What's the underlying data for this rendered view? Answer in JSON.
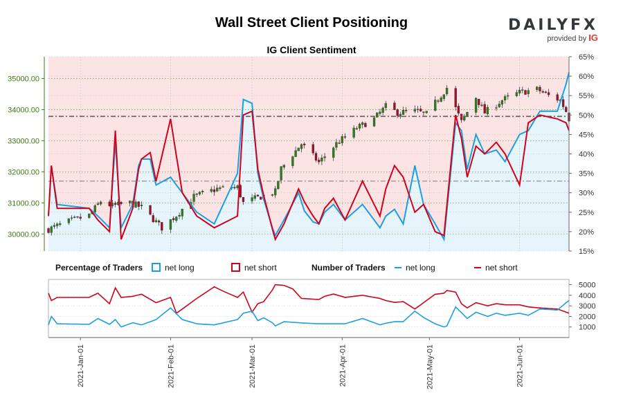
{
  "header": {
    "title": "Wall Street Client Positioning",
    "subtitle": "IG Client Sentiment",
    "logo_text": "DAILYFX",
    "logo_sub": "provided by",
    "logo_brand": "IG"
  },
  "legend": {
    "percentage_heading": "Percentage of Traders",
    "number_heading": "Number of Traders",
    "net_long": "net long",
    "net_short": "net short"
  },
  "colors": {
    "long": "#1a9fe0",
    "short": "#d0021b",
    "bull_candle": "#2e7d1e",
    "bear_candle": "#a0102a",
    "long_area": "#e6f4fc",
    "short_area": "#fce4e5",
    "left_axis": "#3d7a12"
  },
  "chart_data": [
    {
      "type": "candlestick",
      "name": "price",
      "x_range": [
        "2020-12-21",
        "2021-06-18"
      ],
      "y_axis": "left",
      "ylim": [
        29450,
        35700
      ],
      "y_ticks": [
        30000,
        31000,
        32000,
        33000,
        34000,
        35000
      ],
      "y_tick_labels": [
        "30000.00",
        "31000.00",
        "32000.00",
        "33000.00",
        "34000.00",
        "35000.00"
      ],
      "current_price_line": 33780,
      "x_tick_labels": [
        "2021-Jan-01",
        "2021-Feb-01",
        "2021-Mar-01",
        "2021-Apr-01",
        "2021-May-01",
        "2021-Jun-01"
      ],
      "x_ticks": [
        "2021-01-01",
        "2021-02-01",
        "2021-03-01",
        "2021-04-01",
        "2021-05-01",
        "2021-06-01"
      ],
      "anchors": [
        [
          "2020-12-21",
          30150
        ],
        [
          "2020-12-28",
          30400
        ],
        [
          "2021-01-04",
          30600
        ],
        [
          "2021-01-08",
          31050
        ],
        [
          "2021-01-12",
          30900
        ],
        [
          "2021-01-18",
          31000
        ],
        [
          "2021-01-22",
          30850
        ],
        [
          "2021-01-29",
          30200
        ],
        [
          "2021-02-03",
          30600
        ],
        [
          "2021-02-09",
          31200
        ],
        [
          "2021-02-17",
          31450
        ],
        [
          "2021-02-24",
          31500
        ],
        [
          "2021-02-26",
          31000
        ],
        [
          "2021-03-04",
          31200
        ],
        [
          "2021-03-09",
          31350
        ],
        [
          "2021-03-11",
          32100
        ],
        [
          "2021-03-18",
          32900
        ],
        [
          "2021-03-24",
          32300
        ],
        [
          "2021-03-30",
          32900
        ],
        [
          "2021-04-06",
          33400
        ],
        [
          "2021-04-12",
          33700
        ],
        [
          "2021-04-16",
          34100
        ],
        [
          "2021-04-20",
          33900
        ],
        [
          "2021-04-26",
          33950
        ],
        [
          "2021-04-30",
          33850
        ],
        [
          "2021-05-07",
          34700
        ],
        [
          "2021-05-12",
          33600
        ],
        [
          "2021-05-17",
          34400
        ],
        [
          "2021-05-20",
          33900
        ],
        [
          "2021-05-26",
          34300
        ],
        [
          "2021-06-01",
          34550
        ],
        [
          "2021-06-07",
          34650
        ],
        [
          "2021-06-11",
          34450
        ],
        [
          "2021-06-15",
          34300
        ],
        [
          "2021-06-17",
          33950
        ],
        [
          "2021-06-18",
          33700
        ]
      ]
    },
    {
      "type": "line",
      "name": "net long %",
      "y_axis": "right",
      "ylim": [
        15,
        65
      ],
      "y_ticks": [
        15,
        20,
        25,
        30,
        35,
        40,
        45,
        50,
        55,
        60,
        65
      ],
      "y_tick_labels": [
        "15%",
        "20%",
        "25%",
        "30%",
        "35%",
        "40%",
        "45%",
        "50%",
        "55%",
        "60%",
        "65%"
      ],
      "reference_line": 33,
      "anchors": [
        [
          "2020-12-21",
          24
        ],
        [
          "2020-12-22",
          37
        ],
        [
          "2020-12-24",
          27
        ],
        [
          "2021-01-04",
          26
        ],
        [
          "2021-01-07",
          24
        ],
        [
          "2021-01-11",
          21
        ],
        [
          "2021-01-13",
          43
        ],
        [
          "2021-01-15",
          21
        ],
        [
          "2021-01-19",
          27
        ],
        [
          "2021-01-21",
          37
        ],
        [
          "2021-01-24",
          42
        ],
        [
          "2021-01-27",
          32
        ],
        [
          "2021-02-01",
          34
        ],
        [
          "2021-02-05",
          30
        ],
        [
          "2021-02-10",
          25
        ],
        [
          "2021-02-16",
          22
        ],
        [
          "2021-02-24",
          35
        ],
        [
          "2021-02-26",
          54
        ],
        [
          "2021-03-01",
          53
        ],
        [
          "2021-03-03",
          35
        ],
        [
          "2021-03-06",
          25
        ],
        [
          "2021-03-09",
          19
        ],
        [
          "2021-03-12",
          23
        ],
        [
          "2021-03-17",
          30
        ],
        [
          "2021-03-20",
          23
        ],
        [
          "2021-03-24",
          22
        ],
        [
          "2021-03-28",
          28
        ],
        [
          "2021-04-02",
          23
        ],
        [
          "2021-04-08",
          27
        ],
        [
          "2021-04-14",
          21
        ],
        [
          "2021-04-18",
          27
        ],
        [
          "2021-04-22",
          22
        ],
        [
          "2021-04-26",
          37
        ],
        [
          "2021-04-29",
          27
        ],
        [
          "2021-05-03",
          22
        ],
        [
          "2021-05-06",
          18
        ],
        [
          "2021-05-10",
          48
        ],
        [
          "2021-05-12",
          46
        ],
        [
          "2021-05-14",
          36
        ],
        [
          "2021-05-17",
          45
        ],
        [
          "2021-05-20",
          40
        ],
        [
          "2021-05-24",
          41
        ],
        [
          "2021-05-27",
          38
        ],
        [
          "2021-06-01",
          45
        ],
        [
          "2021-06-04",
          46
        ],
        [
          "2021-06-08",
          51
        ],
        [
          "2021-06-14",
          51
        ],
        [
          "2021-06-17",
          58
        ],
        [
          "2021-06-18",
          61
        ]
      ]
    },
    {
      "type": "line",
      "name": "net short %",
      "y_axis": "right",
      "ylim": [
        15,
        65
      ],
      "anchors": [
        [
          "2020-12-21",
          24
        ],
        [
          "2020-12-22",
          37
        ],
        [
          "2020-12-24",
          26
        ],
        [
          "2021-01-04",
          26
        ],
        [
          "2021-01-07",
          23
        ],
        [
          "2021-01-11",
          20
        ],
        [
          "2021-01-13",
          46
        ],
        [
          "2021-01-15",
          18
        ],
        [
          "2021-01-19",
          26
        ],
        [
          "2021-01-21",
          36
        ],
        [
          "2021-01-24",
          44
        ],
        [
          "2021-01-27",
          33
        ],
        [
          "2021-02-01",
          49
        ],
        [
          "2021-02-05",
          30
        ],
        [
          "2021-02-10",
          24
        ],
        [
          "2021-02-16",
          21
        ],
        [
          "2021-02-24",
          24
        ],
        [
          "2021-02-26",
          50
        ],
        [
          "2021-03-01",
          51
        ],
        [
          "2021-03-03",
          36
        ],
        [
          "2021-03-06",
          26
        ],
        [
          "2021-03-09",
          18
        ],
        [
          "2021-03-12",
          22
        ],
        [
          "2021-03-17",
          31
        ],
        [
          "2021-03-20",
          26
        ],
        [
          "2021-03-24",
          22
        ],
        [
          "2021-03-28",
          30
        ],
        [
          "2021-04-02",
          23
        ],
        [
          "2021-04-08",
          33
        ],
        [
          "2021-04-14",
          24
        ],
        [
          "2021-04-18",
          38
        ],
        [
          "2021-04-22",
          34
        ],
        [
          "2021-04-26",
          25
        ],
        [
          "2021-04-29",
          27
        ],
        [
          "2021-05-03",
          20
        ],
        [
          "2021-05-06",
          19
        ],
        [
          "2021-05-10",
          50
        ],
        [
          "2021-05-12",
          44
        ],
        [
          "2021-05-14",
          34
        ],
        [
          "2021-05-17",
          42
        ],
        [
          "2021-05-20",
          40
        ],
        [
          "2021-05-24",
          43
        ],
        [
          "2021-05-27",
          40
        ],
        [
          "2021-06-01",
          32
        ],
        [
          "2021-06-04",
          48
        ],
        [
          "2021-06-08",
          50
        ],
        [
          "2021-06-14",
          49
        ],
        [
          "2021-06-17",
          48
        ],
        [
          "2021-06-18",
          46
        ]
      ]
    },
    {
      "type": "line",
      "name": "number of traders",
      "y_axis": "right",
      "ylim": [
        0,
        5500
      ],
      "y_ticks": [
        1000,
        2000,
        3000,
        4000,
        5000
      ],
      "y_tick_labels": [
        "1000",
        "2000",
        "3000",
        "4000",
        "5000"
      ],
      "series": [
        {
          "name": "net long",
          "anchors": [
            [
              "2020-12-21",
              1200
            ],
            [
              "2020-12-22",
              2000
            ],
            [
              "2020-12-24",
              1300
            ],
            [
              "2021-01-04",
              1250
            ],
            [
              "2021-01-07",
              1800
            ],
            [
              "2021-01-11",
              1250
            ],
            [
              "2021-01-13",
              1700
            ],
            [
              "2021-01-15",
              1000
            ],
            [
              "2021-01-19",
              1400
            ],
            [
              "2021-01-22",
              1200
            ],
            [
              "2021-01-27",
              1700
            ],
            [
              "2021-02-01",
              2800
            ],
            [
              "2021-02-05",
              1700
            ],
            [
              "2021-02-10",
              1300
            ],
            [
              "2021-02-16",
              1200
            ],
            [
              "2021-02-24",
              1700
            ],
            [
              "2021-02-26",
              2300
            ],
            [
              "2021-03-01",
              2500
            ],
            [
              "2021-03-03",
              1600
            ],
            [
              "2021-03-06",
              2000
            ],
            [
              "2021-03-09",
              1100
            ],
            [
              "2021-03-12",
              1500
            ],
            [
              "2021-03-17",
              1400
            ],
            [
              "2021-03-24",
              1300
            ],
            [
              "2021-04-02",
              1300
            ],
            [
              "2021-04-08",
              1800
            ],
            [
              "2021-04-14",
              1200
            ],
            [
              "2021-04-18",
              1500
            ],
            [
              "2021-04-22",
              1500
            ],
            [
              "2021-04-26",
              2500
            ],
            [
              "2021-04-29",
              1900
            ],
            [
              "2021-05-03",
              1300
            ],
            [
              "2021-05-06",
              1000
            ],
            [
              "2021-05-09",
              1300
            ],
            [
              "2021-05-10",
              2900
            ],
            [
              "2021-05-14",
              1800
            ],
            [
              "2021-05-17",
              2400
            ],
            [
              "2021-05-21",
              2000
            ],
            [
              "2021-05-24",
              2300
            ],
            [
              "2021-05-27",
              2100
            ],
            [
              "2021-06-01",
              2300
            ],
            [
              "2021-06-04",
              2100
            ],
            [
              "2021-06-08",
              2700
            ],
            [
              "2021-06-14",
              2600
            ],
            [
              "2021-06-17",
              3300
            ],
            [
              "2021-06-18",
              3500
            ]
          ]
        },
        {
          "name": "net short",
          "anchors": [
            [
              "2020-12-21",
              4200
            ],
            [
              "2020-12-22",
              3500
            ],
            [
              "2020-12-24",
              3800
            ],
            [
              "2021-01-04",
              3800
            ],
            [
              "2021-01-07",
              4200
            ],
            [
              "2021-01-11",
              3200
            ],
            [
              "2021-01-13",
              4700
            ],
            [
              "2021-01-15",
              3800
            ],
            [
              "2021-01-19",
              3900
            ],
            [
              "2021-01-22",
              4100
            ],
            [
              "2021-01-27",
              3300
            ],
            [
              "2021-02-01",
              3800
            ],
            [
              "2021-02-03",
              2300
            ],
            [
              "2021-02-05",
              2700
            ],
            [
              "2021-02-10",
              3700
            ],
            [
              "2021-02-16",
              4800
            ],
            [
              "2021-02-19",
              4400
            ],
            [
              "2021-02-24",
              3800
            ],
            [
              "2021-02-26",
              4300
            ],
            [
              "2021-03-01",
              2400
            ],
            [
              "2021-03-03",
              3200
            ],
            [
              "2021-03-06",
              3500
            ],
            [
              "2021-03-09",
              5000
            ],
            [
              "2021-03-14",
              4900
            ],
            [
              "2021-03-18",
              3700
            ],
            [
              "2021-03-24",
              3600
            ],
            [
              "2021-03-28",
              4200
            ],
            [
              "2021-04-02",
              3800
            ],
            [
              "2021-04-08",
              4000
            ],
            [
              "2021-04-14",
              3700
            ],
            [
              "2021-04-18",
              3300
            ],
            [
              "2021-04-22",
              3400
            ],
            [
              "2021-04-26",
              2700
            ],
            [
              "2021-04-29",
              3300
            ],
            [
              "2021-05-03",
              4100
            ],
            [
              "2021-05-06",
              4200
            ],
            [
              "2021-05-08",
              4700
            ],
            [
              "2021-05-10",
              4300
            ],
            [
              "2021-05-12",
              3200
            ],
            [
              "2021-05-14",
              2800
            ],
            [
              "2021-05-17",
              3300
            ],
            [
              "2021-05-21",
              3000
            ],
            [
              "2021-05-24",
              3200
            ],
            [
              "2021-05-27",
              3100
            ],
            [
              "2021-06-01",
              3100
            ],
            [
              "2021-06-04",
              2900
            ],
            [
              "2021-06-08",
              2800
            ],
            [
              "2021-06-14",
              2700
            ],
            [
              "2021-06-17",
              2400
            ],
            [
              "2021-06-18",
              2300
            ]
          ]
        }
      ]
    }
  ]
}
